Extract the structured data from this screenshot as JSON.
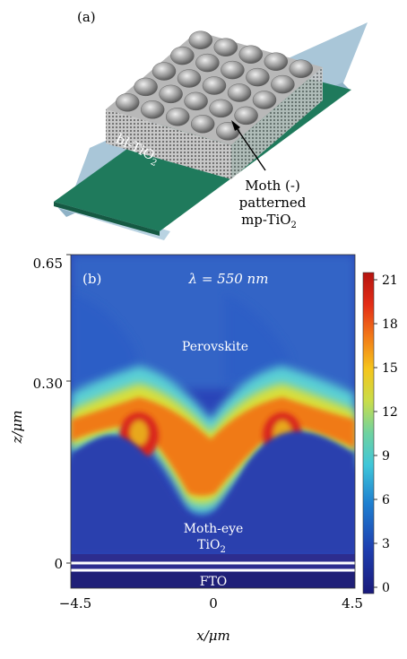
{
  "figure": {
    "panel_a": {
      "label": "(a)",
      "bl_layer": {
        "text": "bl-TiO",
        "sub": "2"
      },
      "callout": {
        "line1": "Moth (-)",
        "line2": "patterned",
        "line3": {
          "text": "mp-TiO",
          "sub": "2"
        }
      },
      "colors": {
        "green": "#1f7a5c",
        "substrate": "#a9c6d8",
        "mesh": "#8a8a8a"
      }
    },
    "panel_b": {
      "label": "(b)",
      "wavelength": "λ = 550 nm",
      "region_top": "Perovskite",
      "region_mid_1": "Moth-eye",
      "region_mid_2": {
        "text": "TiO",
        "sub": "2"
      },
      "region_bottom": "FTO"
    }
  },
  "chart_data": {
    "type": "heatmap",
    "title": "",
    "xlabel": "x/μm",
    "ylabel": "z/μm",
    "x_ticks": [
      "−4.5",
      "0",
      "4.5"
    ],
    "y_ticks": [
      "0.65",
      "0.30",
      "0"
    ],
    "xlim": [
      -4.5,
      4.5
    ],
    "ylim": [
      0,
      0.65
    ],
    "colorbar": {
      "range": [
        0,
        21
      ],
      "ticks": [
        "21",
        "18",
        "15",
        "12",
        "9",
        "6",
        "3",
        "0"
      ]
    },
    "field_peaks": [
      {
        "x": -2.3,
        "z": 0.2,
        "value": 21
      },
      {
        "x": 2.3,
        "z": 0.2,
        "value": 21
      }
    ]
  }
}
